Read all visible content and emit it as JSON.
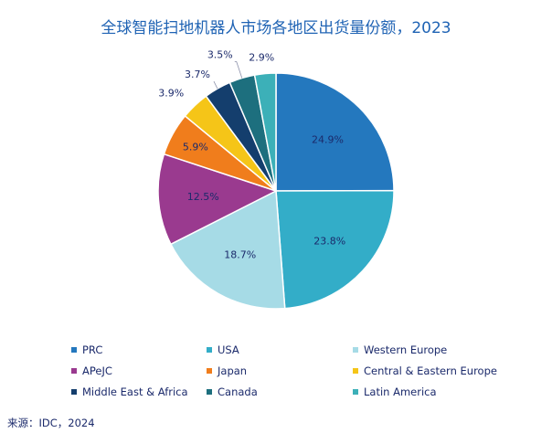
{
  "chart_data": {
    "type": "pie",
    "title": "全球智能扫地机器人市场各地区出货量份额，2023",
    "slices": [
      {
        "label": "PRC",
        "value": 24.9,
        "value_label": "24.9%",
        "color": "#2478be"
      },
      {
        "label": "USA",
        "value": 23.8,
        "value_label": "23.8%",
        "color": "#33adc8"
      },
      {
        "label": "Western Europe",
        "value": 18.7,
        "value_label": "18.7%",
        "color": "#a6dbe6"
      },
      {
        "label": "APeJC",
        "value": 12.5,
        "value_label": "12.5%",
        "color": "#9a3a8f"
      },
      {
        "label": "Japan",
        "value": 5.9,
        "value_label": "5.9%",
        "color": "#f07d1c"
      },
      {
        "label": "Central & Eastern Europe",
        "value": 3.9,
        "value_label": "3.9%",
        "color": "#f5c518"
      },
      {
        "label": "Middle East & Africa",
        "value": 3.7,
        "value_label": "3.7%",
        "color": "#143e6d"
      },
      {
        "label": "Canada",
        "value": 3.5,
        "value_label": "3.5%",
        "color": "#1d6f7e"
      },
      {
        "label": "Latin America",
        "value": 2.9,
        "value_label": "2.9%",
        "color": "#3cb0b8"
      }
    ],
    "legend_placement": "bottom"
  },
  "source": "来源：IDC，2024"
}
